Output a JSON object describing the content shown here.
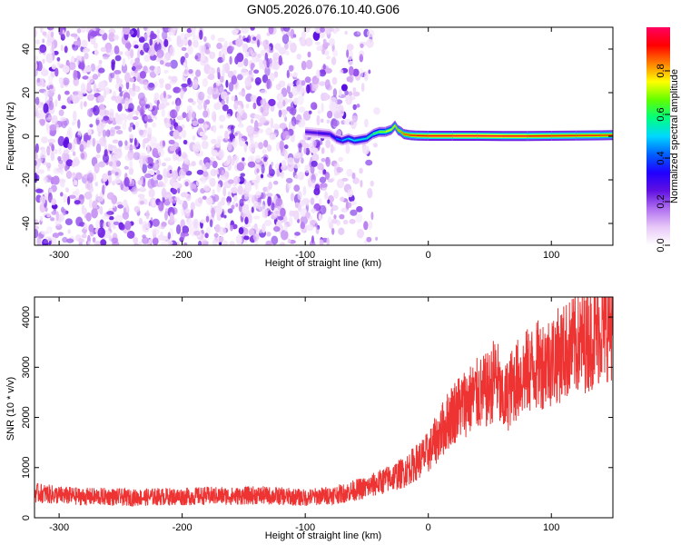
{
  "chart_data": [
    {
      "type": "heatmap",
      "title": "GN05.2026.076.10.40.G06",
      "xlabel": "Height of straight line (km)",
      "ylabel": "Frequency (Hz)",
      "xlim": [
        -320,
        150
      ],
      "ylim": [
        -50,
        50
      ],
      "x_ticks": [
        -300,
        -200,
        -100,
        0,
        100
      ],
      "x_tick_labels": [
        "-300",
        "-200",
        "-100",
        "0",
        "100"
      ],
      "y_ticks": [
        -40,
        -20,
        0,
        20,
        40
      ],
      "y_tick_labels": [
        "-40",
        "-20",
        "0",
        "20",
        "40"
      ],
      "colorbar": {
        "label": "Normalized spectral amplitude",
        "range": [
          0,
          1
        ],
        "ticks": [
          0.0,
          0.2,
          0.4,
          0.6,
          0.8
        ],
        "tick_labels": [
          "0.0",
          "0.2",
          "0.4",
          "0.6",
          "0.8"
        ],
        "colors": [
          "#ffffff",
          "#e8c8f8",
          "#b070f0",
          "#6010e0",
          "#2000ff",
          "#0060ff",
          "#00d8ff",
          "#00ff80",
          "#60ff00",
          "#ffff00",
          "#ff8000",
          "#ff0000",
          "#ff0060"
        ]
      },
      "noise_region_x": [
        -320,
        -40
      ],
      "signal_track": {
        "x": [
          -100,
          -90,
          -80,
          -75,
          -70,
          -65,
          -60,
          -50,
          -45,
          -40,
          -35,
          -30,
          -27,
          -25,
          -22,
          -20,
          -15,
          -10,
          0,
          20,
          40,
          60,
          80,
          100,
          120,
          140,
          150
        ],
        "freq": [
          2,
          1.5,
          1,
          -1,
          -2,
          -1,
          -2,
          -1,
          1,
          2,
          2,
          3,
          5,
          3,
          2,
          1,
          0.5,
          0.3,
          0.2,
          0.2,
          0.2,
          0.1,
          0.1,
          0.2,
          0.3,
          0.4,
          0.5
        ],
        "amplitude": [
          0.25,
          0.3,
          0.3,
          0.4,
          0.45,
          0.5,
          0.5,
          0.55,
          0.6,
          0.65,
          0.7,
          0.75,
          0.8,
          0.8,
          0.82,
          0.85,
          0.88,
          0.9,
          0.92,
          0.95,
          0.96,
          0.95,
          0.93,
          0.9,
          0.9,
          0.88,
          0.87
        ]
      }
    },
    {
      "type": "line",
      "xlabel": "Height of straight line (km)",
      "ylabel": "SNR (10 * v/v)",
      "xlim": [
        -320,
        150
      ],
      "ylim": [
        0,
        4400
      ],
      "x_ticks": [
        -300,
        -200,
        -100,
        0,
        100
      ],
      "x_tick_labels": [
        "-300",
        "-200",
        "-100",
        "0",
        "100"
      ],
      "y_ticks": [
        0,
        1000,
        2000,
        3000,
        4000
      ],
      "y_tick_labels": [
        "0",
        "1000",
        "2000",
        "3000",
        "4000"
      ],
      "color": "#ee3333",
      "series": [
        {
          "name": "SNR",
          "x": [
            -320,
            -300,
            -280,
            -260,
            -240,
            -220,
            -200,
            -180,
            -160,
            -140,
            -120,
            -100,
            -80,
            -70,
            -60,
            -50,
            -40,
            -30,
            -20,
            -10,
            0,
            10,
            20,
            30,
            40,
            50,
            55,
            60,
            70,
            80,
            90,
            100,
            110,
            120,
            130,
            140,
            150
          ],
          "values": [
            500,
            450,
            420,
            420,
            400,
            420,
            420,
            440,
            430,
            450,
            430,
            400,
            450,
            480,
            550,
            600,
            700,
            800,
            900,
            1100,
            1300,
            1700,
            2100,
            2300,
            2450,
            2550,
            2900,
            2250,
            2700,
            2900,
            3050,
            3150,
            3300,
            3450,
            3550,
            3750,
            3900
          ]
        }
      ]
    }
  ]
}
